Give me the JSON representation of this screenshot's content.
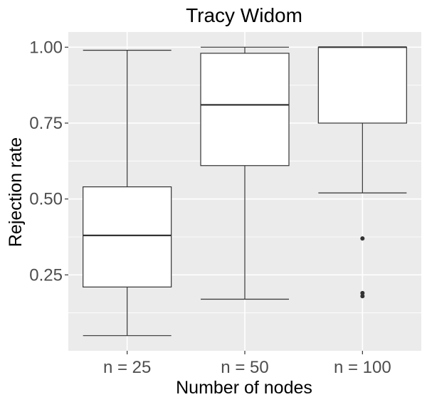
{
  "chart_data": {
    "type": "boxplot",
    "title": "Tracy Widom",
    "xlabel": "Number of nodes",
    "ylabel": "Rejection rate",
    "categories": [
      "n = 25",
      "n = 50",
      "n = 100"
    ],
    "ylim": [
      0.0,
      1.05
    ],
    "yticks": [
      0.25,
      0.5,
      0.75,
      1.0
    ],
    "ytick_labels": [
      "0.25",
      "0.50",
      "0.75",
      "1.00"
    ],
    "boxes": [
      {
        "category": "n = 25",
        "whisker_low": 0.05,
        "q1": 0.21,
        "median": 0.38,
        "q3": 0.54,
        "whisker_high": 0.99,
        "outliers": []
      },
      {
        "category": "n = 50",
        "whisker_low": 0.17,
        "q1": 0.61,
        "median": 0.81,
        "q3": 0.98,
        "whisker_high": 1.0,
        "outliers": []
      },
      {
        "category": "n = 100",
        "whisker_low": 0.52,
        "q1": 0.75,
        "median": 1.0,
        "q3": 1.0,
        "whisker_high": 1.0,
        "outliers": [
          0.37,
          0.19,
          0.18
        ]
      }
    ],
    "grid": true,
    "panel_background": "#ebebeb",
    "grid_color": "#ffffff",
    "box_fill": "#ffffff",
    "line_color": "#333333",
    "outlier_color": "#333333"
  }
}
